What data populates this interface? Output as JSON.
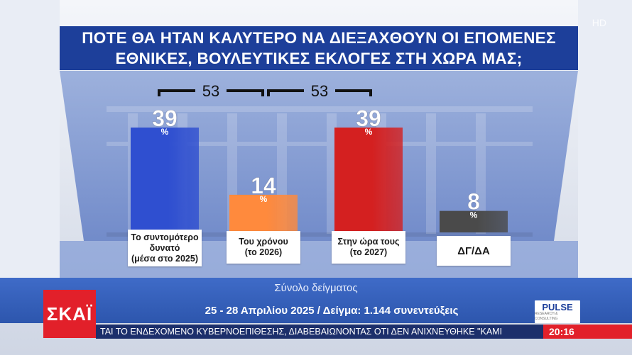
{
  "title_lines": [
    "ΠΟΤΕ ΘΑ ΗΤΑΝ ΚΑΛΥΤΕΡΟ ΝΑ ΔΙΕΞΑΧΘΟΥΝ ΟΙ ΕΠΟΜΕΝΕΣ",
    "ΕΘΝΙΚΕΣ, ΒΟΥΛΕΥΤΙΚΕΣ ΕΚΛΟΓΕΣ ΣΤΗ ΧΩΡΑ ΜΑΣ;"
  ],
  "hd_badge": "HD",
  "chart_data": {
    "type": "bar",
    "categories": [
      "Το συντομότερο δυνατό (μέσα στο 2025)",
      "Του χρόνου (το 2026)",
      "Στην ώρα τους (το 2027)",
      "ΔΓ/ΔΑ"
    ],
    "category_lines": [
      [
        "Το συντομότερο",
        "δυνατό",
        "(μέσα στο 2025)"
      ],
      [
        "Του χρόνου",
        "(το 2026)"
      ],
      [
        "Στην ώρα τους",
        "(το 2027)"
      ],
      [
        "ΔΓ/ΔΑ"
      ]
    ],
    "values": [
      39,
      14,
      39,
      8
    ],
    "unit": "%",
    "colors": [
      "#2f4fd0",
      "#ff8a3d",
      "#d42020",
      "#4a4a4a"
    ],
    "brackets": [
      {
        "from": 0,
        "to": 1,
        "value": 53
      },
      {
        "from": 1,
        "to": 2,
        "value": 53
      }
    ],
    "ylim": [
      0,
      45
    ]
  },
  "footer": {
    "sample_label": "Σύνολο δείγματος",
    "date_line": "25 - 28 Απριλίου 2025 / Δείγμα: 1.144 συνεντεύξεις",
    "logo": "ΣΚΑΪ",
    "pollster": "PULSE",
    "pollster_sub": "RESEARCH & CONSULTING",
    "ticker": "ΤΑΙ ΤΟ ΕΝΔΕΧΟΜΕΝΟ ΚΥΒΕΡΝΟΕΠΙΘΕΣΗΣ, ΔΙΑΒΕΒΑΙΩΝΟΝΤΑΣ ΟΤΙ ΔΕΝ ΑΝΙΧΝΕΥΘΗΚΕ \"ΚΑΜΙ",
    "clock": "20:16"
  }
}
